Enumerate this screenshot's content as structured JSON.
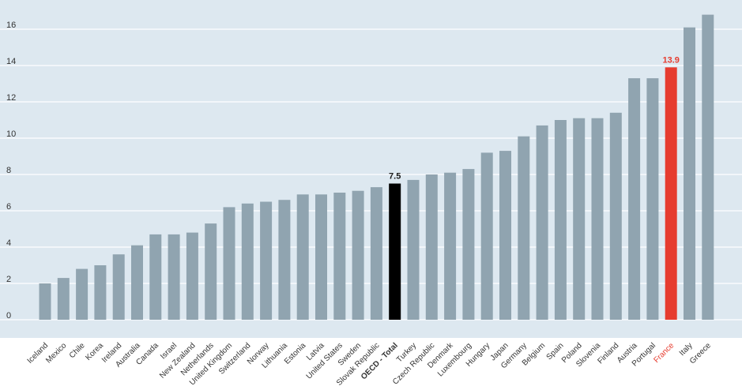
{
  "chart_data": {
    "type": "bar",
    "title": "",
    "xlabel": "",
    "ylabel": "",
    "ylim": [
      0,
      17
    ],
    "yticks": [
      0,
      2,
      4,
      6,
      8,
      10,
      12,
      14,
      16
    ],
    "grid": true,
    "categories": [
      "Iceland",
      "Mexico",
      "Chile",
      "Korea",
      "Ireland",
      "Australia",
      "Canada",
      "Israel",
      "New Zealand",
      "Netherlands",
      "United Kingdom",
      "Switzerland",
      "Norway",
      "Lithuania",
      "Estonia",
      "Latvia",
      "United States",
      "Sweden",
      "Slovak Republic",
      "OECD - Total",
      "Turkey",
      "Czech Republic",
      "Denmark",
      "Luxembourg",
      "Hungary",
      "Japan",
      "Germany",
      "Belgium",
      "Spain",
      "Poland",
      "Slovenia",
      "Finland",
      "Austria",
      "Portugal",
      "France",
      "Italy",
      "Greece"
    ],
    "values": [
      2.0,
      2.3,
      2.8,
      3.0,
      3.6,
      4.1,
      4.7,
      4.7,
      4.8,
      5.3,
      6.2,
      6.4,
      6.5,
      6.6,
      6.9,
      6.9,
      7.0,
      7.1,
      7.3,
      7.5,
      7.7,
      8.0,
      8.1,
      8.3,
      9.2,
      9.3,
      10.1,
      10.7,
      11.0,
      11.1,
      11.1,
      11.4,
      13.3,
      13.3,
      13.9,
      16.1,
      16.8
    ],
    "highlights": [
      {
        "category": "OECD - Total",
        "label": "7.5",
        "color": "#000000",
        "label_color": "#1a1a1a",
        "bold_tick": true
      },
      {
        "category": "France",
        "label": "13.9",
        "color": "#e63c2f",
        "label_color": "#e63c2f",
        "tick_color": "#e63c2f"
      }
    ],
    "colors": {
      "bar": "#90a4b0",
      "plot_background": "#dde8f0",
      "grid": "#ffffff",
      "tick_label": "#333333"
    }
  }
}
